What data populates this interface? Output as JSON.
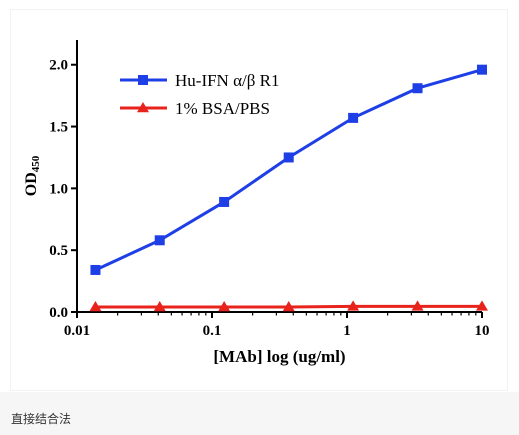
{
  "caption": "直接结合法",
  "chart_data": {
    "type": "line",
    "xscale": "log",
    "xlim": [
      0.01,
      10
    ],
    "ylim": [
      0,
      2.2
    ],
    "xticks": [
      0.01,
      0.1,
      1,
      10
    ],
    "xtick_labels": [
      "0.01",
      "0.1",
      "1",
      "10"
    ],
    "yticks": [
      0,
      0.5,
      1.0,
      1.5,
      2.0
    ],
    "ytick_labels": [
      "0.0",
      "0.5",
      "1.0",
      "1.5",
      "2.0"
    ],
    "xlabel": "[MAb] log (ug/ml)",
    "ylabel_main": "OD",
    "ylabel_sub": "450",
    "legend_position": "top-left",
    "grid": false,
    "series": [
      {
        "name": "Hu-IFN α/β R1",
        "color": "#1f3fe6",
        "marker": "square",
        "x": [
          0.0137,
          0.041,
          0.123,
          0.37,
          1.11,
          3.33,
          10
        ],
        "y": [
          0.34,
          0.58,
          0.89,
          1.25,
          1.57,
          1.81,
          1.96
        ]
      },
      {
        "name": "1% BSA/PBS",
        "color": "#e8231c",
        "marker": "triangle",
        "x": [
          0.0137,
          0.041,
          0.123,
          0.37,
          1.11,
          3.33,
          10
        ],
        "y": [
          0.04,
          0.04,
          0.04,
          0.04,
          0.045,
          0.045,
          0.045
        ]
      }
    ]
  }
}
